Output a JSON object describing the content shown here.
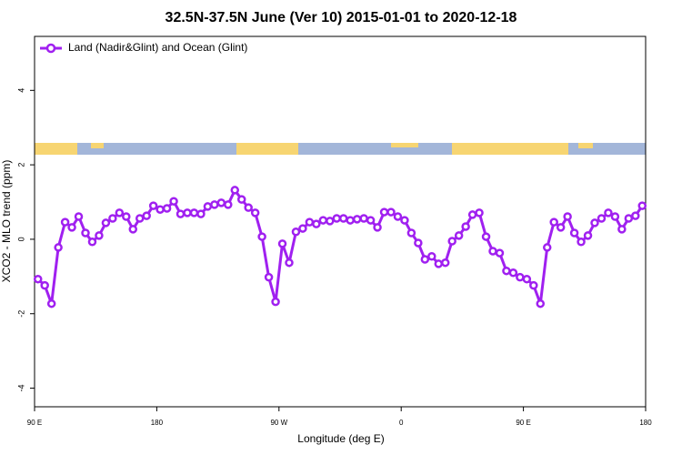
{
  "chart_data": {
    "type": "line",
    "title": "32.5N-37.5N June (Ver 10)   2015-01-01 to 2020-12-18",
    "x_label": "Longitude (deg E)",
    "y_label": "XCO2 - MLO trend (ppm)",
    "x": [
      92.5,
      97.5,
      102.5,
      107.5,
      112.5,
      117.5,
      122.5,
      127.5,
      132.5,
      137.5,
      142.5,
      147.5,
      152.5,
      157.5,
      162.5,
      167.5,
      172.5,
      177.5,
      182.5,
      187.5,
      192.5,
      197.5,
      202.5,
      207.5,
      212.5,
      217.5,
      222.5,
      227.5,
      232.5,
      237.5,
      242.5,
      247.5,
      252.5,
      257.5,
      262.5,
      267.5,
      272.5,
      277.5,
      282.5,
      287.5,
      292.5,
      297.5,
      302.5,
      307.5,
      312.5,
      317.5,
      322.5,
      327.5,
      332.5,
      337.5,
      342.5,
      347.5,
      352.5,
      357.5,
      362.5,
      367.5,
      372.5,
      377.5,
      382.5,
      387.5,
      392.5,
      397.5,
      402.5,
      407.5,
      412.5,
      417.5,
      422.5,
      427.5,
      432.5,
      437.5,
      442.5,
      447.5,
      452.5,
      457.5,
      462.5,
      467.5,
      472.5,
      477.5,
      482.5,
      487.5,
      492.5,
      497.5,
      502.5,
      507.5,
      512.5,
      517.5,
      522.5,
      527.5,
      532.5,
      537.5
    ],
    "series": [
      {
        "name": "Land (Nadir&Glint) and Ocean (Glint)",
        "color": "#a020f0",
        "values": [
          -1.07,
          -1.24,
          -1.73,
          -0.22,
          0.46,
          0.32,
          0.61,
          0.17,
          -0.07,
          0.1,
          0.44,
          0.56,
          0.71,
          0.61,
          0.27,
          0.56,
          0.63,
          0.9,
          0.8,
          0.83,
          1.02,
          0.68,
          0.71,
          0.71,
          0.68,
          0.88,
          0.93,
          0.98,
          0.93,
          1.32,
          1.07,
          0.85,
          0.71,
          0.07,
          -1.02,
          -1.68,
          -0.12,
          -0.63,
          0.2,
          0.29,
          0.46,
          0.41,
          0.51,
          0.49,
          0.56,
          0.56,
          0.51,
          0.54,
          0.56,
          0.51,
          0.32,
          0.73,
          0.73,
          0.61,
          0.51,
          0.17,
          -0.1,
          -0.54,
          -0.46,
          -0.66,
          -0.63,
          -0.05,
          0.1,
          0.34,
          0.66,
          0.71,
          0.07,
          -0.32,
          -0.37,
          -0.85,
          -0.9,
          -1.02,
          -1.07,
          -1.24,
          -1.73,
          -0.22,
          0.46,
          0.32,
          0.61,
          0.17,
          -0.07,
          0.1,
          0.44,
          0.56,
          0.71,
          0.61,
          0.27,
          0.56,
          0.63,
          0.9
        ]
      }
    ],
    "xlim": [
      90,
      540
    ],
    "xticks": [
      {
        "value": 90,
        "label": "90 E"
      },
      180,
      {
        "value": 270,
        "label": "90 W"
      },
      0.0,
      {
        "value": 450,
        "label": "90 E"
      },
      180
    ],
    "ylim": [
      -4.5,
      5.45
    ],
    "yticks": [
      -4,
      -2,
      0,
      2,
      4
    ],
    "legend": "top-left"
  }
}
